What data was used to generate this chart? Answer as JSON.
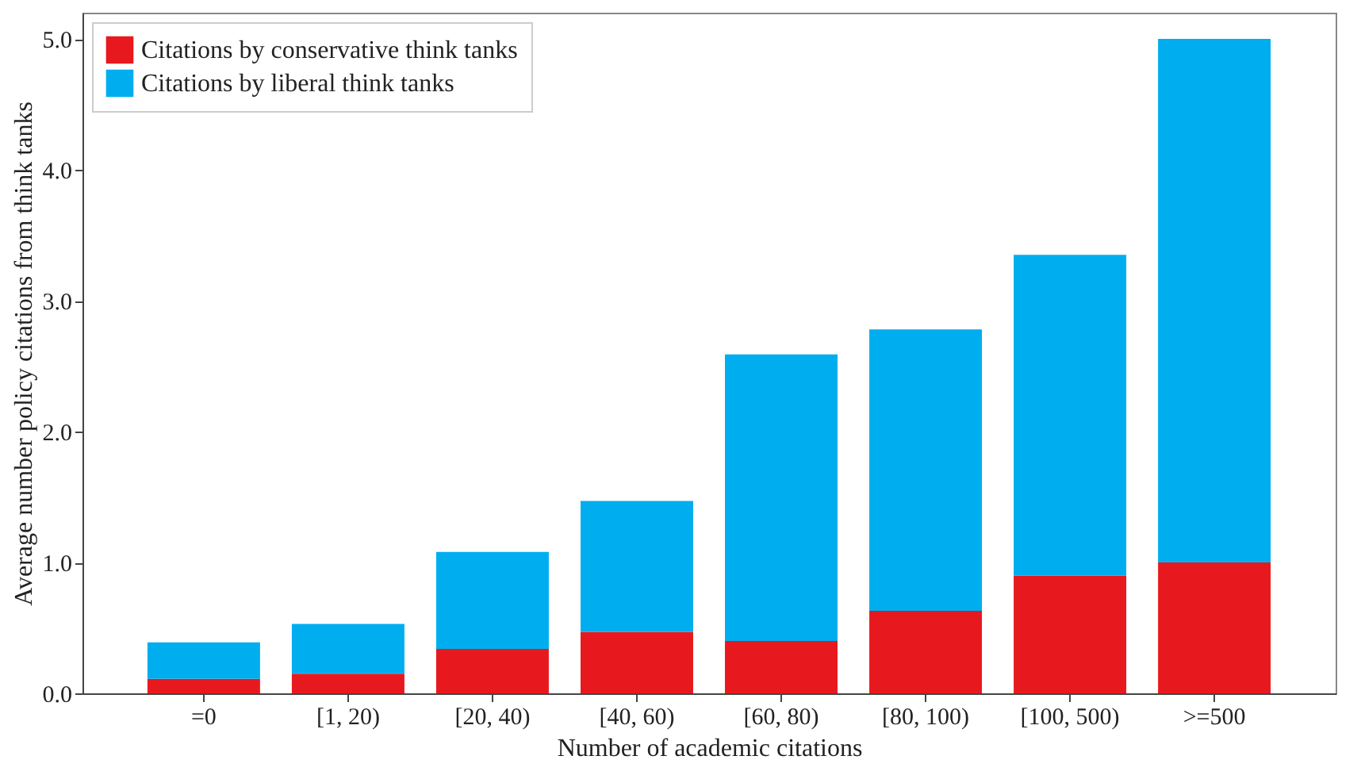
{
  "chart_data": {
    "type": "bar",
    "stacked": true,
    "xlabel": "Number of academic citations",
    "ylabel": "Average number policy citations from think tanks",
    "categories": [
      "=0",
      "[1, 20)",
      "[20, 40)",
      "[40, 60)",
      "[60, 80)",
      "[80, 100)",
      "[100, 500)",
      ">=500"
    ],
    "series": [
      {
        "name": "Citations by conservative think tanks",
        "color": "#e8191e",
        "values": [
          0.11,
          0.15,
          0.34,
          0.47,
          0.4,
          0.63,
          0.9,
          1.0
        ]
      },
      {
        "name": "Citations by liberal think tanks",
        "color": "#00aeef",
        "values": [
          0.28,
          0.38,
          0.74,
          1.0,
          2.19,
          2.15,
          2.45,
          4.0
        ]
      }
    ],
    "ylim": [
      0,
      5.2
    ],
    "yticks": [
      {
        "value": 0,
        "label": "0.0"
      },
      {
        "value": 1,
        "label": "1.0"
      },
      {
        "value": 2,
        "label": "2.0"
      },
      {
        "value": 3,
        "label": "3.0"
      },
      {
        "value": 4,
        "label": "4.0"
      },
      {
        "value": 5,
        "label": "5.0"
      }
    ],
    "grid": false,
    "legend": "top left"
  }
}
